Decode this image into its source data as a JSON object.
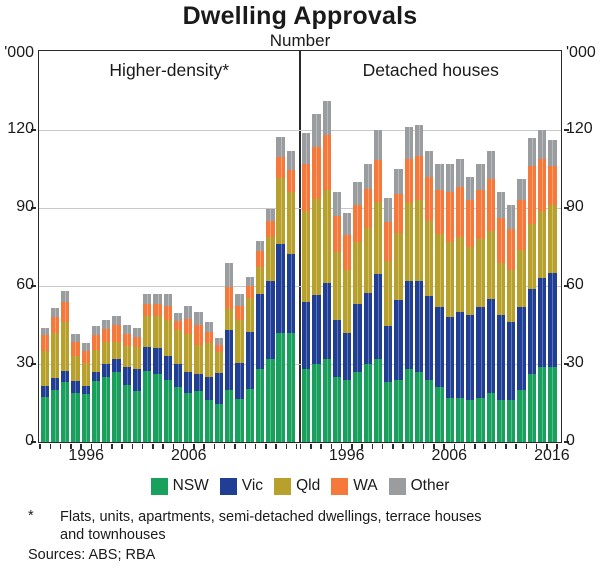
{
  "title": "Dwelling Approvals",
  "subtitle": "Number",
  "y_axis": {
    "unit_label": "'000",
    "ticks": [
      0,
      30,
      60,
      90,
      120
    ],
    "max": 150
  },
  "legend": [
    "NSW",
    "Vic",
    "Qld",
    "WA",
    "Other"
  ],
  "footnote": {
    "marker": "*",
    "lines": [
      "Flats, units, apartments, semi-detached dwellings, terrace houses",
      "and townhouses"
    ]
  },
  "sources": "Sources: ABS; RBA",
  "chart_data": {
    "type": "bar",
    "stacked": true,
    "title": "Dwelling Approvals",
    "subtitle": "Number",
    "unit": "thousands of approvals per year",
    "ylim": [
      0,
      150
    ],
    "yticks": [
      0,
      30,
      60,
      90,
      120
    ],
    "grid": true,
    "legend_position": "bottom",
    "categories": [
      1992,
      1993,
      1994,
      1995,
      1996,
      1997,
      1998,
      1999,
      2000,
      2001,
      2002,
      2003,
      2004,
      2005,
      2006,
      2007,
      2008,
      2009,
      2010,
      2011,
      2012,
      2013,
      2014,
      2015,
      2016
    ],
    "series_names": [
      "NSW",
      "Vic",
      "Qld",
      "WA",
      "Other"
    ],
    "colors": {
      "NSW": "#18a05c",
      "Vic": "#1f3e94",
      "Qld": "#b8a02c",
      "WA": "#f5793b",
      "Other": "#9a9da0"
    },
    "panels": [
      {
        "label": "Higher-density*",
        "x_tick_years": [
          1996,
          2006
        ],
        "series": [
          {
            "name": "NSW",
            "values": [
              17.5,
              20,
              23,
              19,
              18.5,
              23.5,
              25,
              27,
              22,
              19.5,
              27.5,
              26,
              24,
              21,
              19,
              19.5,
              16,
              14.5,
              20,
              16.5,
              20.5,
              28,
              32,
              42,
              42
            ]
          },
          {
            "name": "Vic",
            "values": [
              4,
              4.5,
              4.5,
              4.5,
              3,
              3.5,
              5,
              5,
              7,
              8.5,
              9,
              10,
              9,
              9,
              8,
              6.5,
              9,
              12,
              23,
              14,
              22,
              29,
              30,
              34,
              30.5
            ]
          },
          {
            "name": "Qld",
            "values": [
              13.5,
              17.5,
              18.5,
              9.5,
              9,
              8.5,
              8.5,
              6.5,
              8,
              8.5,
              12,
              12.5,
              14,
              13,
              14.5,
              11.5,
              13,
              8,
              8,
              16.5,
              13,
              10.5,
              17,
              25.5,
              23.5
            ]
          },
          {
            "name": "WA",
            "values": [
              6,
              6,
              8,
              5.5,
              4.5,
              5.5,
              5,
              6.5,
              4.5,
              4,
              4.5,
              4.5,
              5.5,
              3.5,
              6,
              7.5,
              4.5,
              3,
              8.5,
              5.5,
              4.5,
              6,
              6,
              8,
              8.5
            ]
          },
          {
            "name": "Other",
            "values": [
              3,
              3.5,
              4,
              3,
              3,
              3.5,
              3.5,
              3.5,
              3.5,
              3.5,
              4,
              4,
              4.5,
              3,
              5,
              5,
              3.5,
              2.5,
              9.5,
              4.5,
              3.5,
              4,
              4.5,
              8,
              7.5
            ]
          }
        ]
      },
      {
        "label": "Detached houses",
        "x_tick_years": [
          1996,
          2006,
          2016
        ],
        "series": [
          {
            "name": "NSW",
            "values": [
              28,
              30,
              32,
              25,
              24,
              27,
              30,
              32,
              23,
              24,
              28,
              27,
              24,
              21,
              17,
              17,
              16,
              17,
              19,
              16,
              16,
              20,
              26,
              29,
              29
            ]
          },
          {
            "name": "Vic",
            "values": [
              26,
              26.5,
              29,
              22,
              18,
              26,
              27.5,
              32.5,
              21.5,
              30.5,
              34,
              35,
              32,
              31,
              31,
              33,
              33,
              35,
              36,
              33,
              30,
              32,
              33,
              34,
              36
            ]
          },
          {
            "name": "Qld",
            "values": [
              35,
              37,
              36,
              26,
              24,
              24,
              25,
              28,
              25,
              26,
              30,
              31,
              29,
              28,
              29,
              29,
              26,
              26,
              26,
              20,
              20,
              22,
              25,
              26,
              26
            ]
          },
          {
            "name": "WA",
            "values": [
              18,
              20,
              21,
              14,
              13.5,
              14,
              15,
              16,
              15,
              15,
              17,
              17,
              17,
              17,
              19,
              19,
              18,
              19,
              20,
              17,
              16,
              19,
              22,
              20,
              15
            ]
          },
          {
            "name": "Other",
            "values": [
              12,
              12.5,
              13,
              9,
              8.5,
              9,
              9.5,
              11.5,
              9.5,
              9.5,
              12,
              12,
              10,
              10,
              11,
              11,
              9,
              10,
              11,
              10,
              9,
              8,
              11,
              11,
              10
            ]
          }
        ]
      }
    ]
  }
}
